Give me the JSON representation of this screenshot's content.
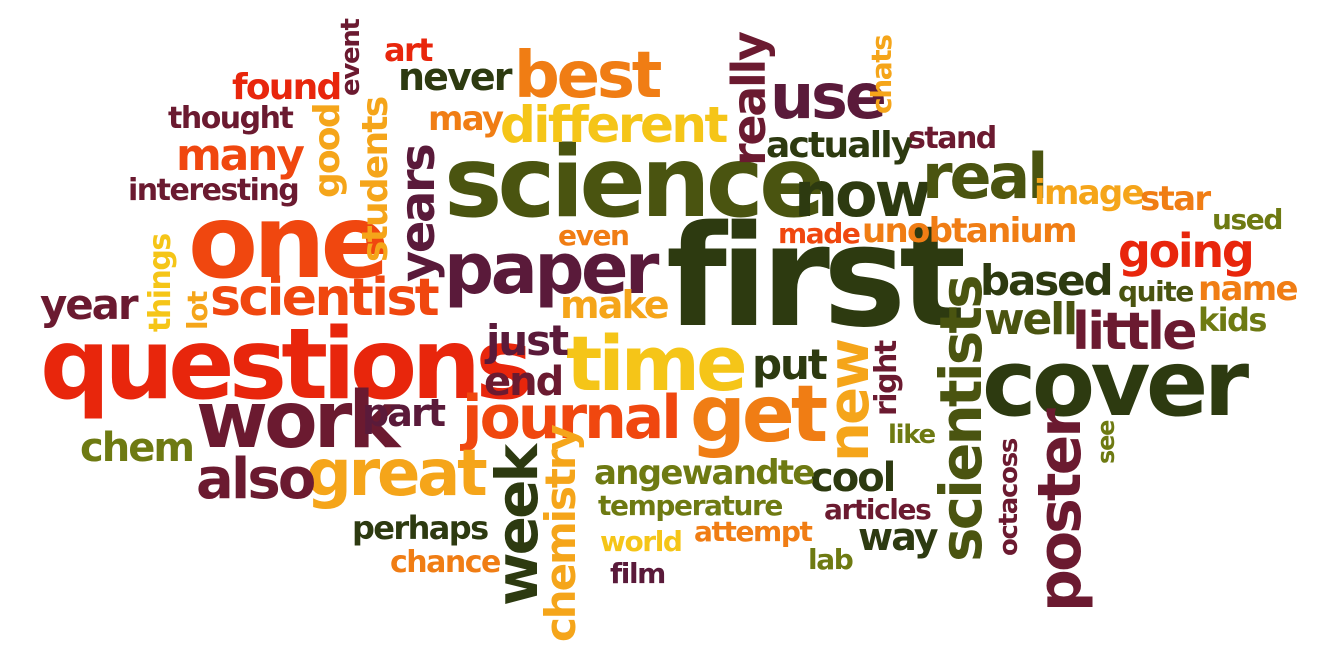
{
  "palette": {
    "dark_red": "#8a1010",
    "red": "#e8260c",
    "orange_red": "#f0470f",
    "orange": "#f07d14",
    "amber": "#f5a51a",
    "yellow": "#f5c518",
    "olive": "#6e7a12",
    "dark_olive": "#4a5410",
    "dark_green": "#2d3a10",
    "maroon": "#6b1a30",
    "plum": "#5a1a3a"
  },
  "words": {
    "first": "first",
    "science": "science",
    "questions": "questions",
    "one": "one",
    "cover": "cover",
    "time": "time",
    "paper": "paper",
    "work": "work",
    "scientists": "scientists",
    "get": "get",
    "best": "best",
    "new": "new",
    "journal": "journal",
    "poster": "poster",
    "great": "great",
    "week": "week",
    "now": "now",
    "use": "use",
    "real": "real",
    "scientist": "scientist",
    "different": "different",
    "years": "years",
    "little": "little",
    "also": "also",
    "chemistry": "chemistry",
    "many": "many",
    "well": "well",
    "based": "based",
    "going": "going",
    "really": "really",
    "year": "year",
    "chem": "chem",
    "just": "just",
    "make": "make",
    "put": "put",
    "end": "end",
    "part": "part",
    "cool": "cool",
    "angewandte": "angewandte",
    "actually": "actually",
    "found": "found",
    "never": "never",
    "image": "image",
    "star": "star",
    "name": "name",
    "kids": "kids",
    "used": "used",
    "quite": "quite",
    "unobtanium": "unobtanium",
    "made": "made",
    "even": "even",
    "thought": "thought",
    "interesting": "interesting",
    "may": "may",
    "art": "art",
    "stand": "stand",
    "good": "good",
    "students": "students",
    "event": "event",
    "chats": "chats",
    "things": "things",
    "lot": "lot",
    "right": "right",
    "like": "like",
    "perhaps": "perhaps",
    "temperature": "temperature",
    "articles": "articles",
    "attempt": "attempt",
    "world": "world",
    "chance": "chance",
    "film": "film",
    "lab": "lab",
    "way": "way",
    "octacoss": "octacoss",
    "see": "see"
  }
}
